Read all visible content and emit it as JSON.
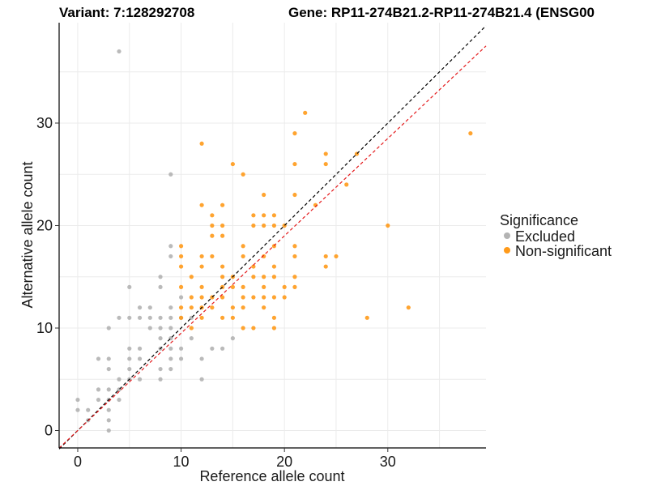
{
  "chart_data": {
    "type": "scatter",
    "title_left": "Variant: 7:128292708",
    "title_right": "Gene: RP11-274B21.2-RP11-274B21.4 (ENSG00",
    "xlabel": "Reference allele count",
    "ylabel": "Alternative allele count",
    "xlim": [
      -1.8,
      39.5
    ],
    "ylim": [
      -1.7,
      39.8
    ],
    "xticks": [
      0,
      10,
      20,
      30
    ],
    "yticks": [
      0,
      10,
      20,
      30
    ],
    "grid": true,
    "legend": {
      "title": "Significance",
      "position": "right",
      "entries": [
        {
          "label": "Excluded",
          "color": "#b3b3b3"
        },
        {
          "label": "Non-significant",
          "color": "#ff9a1a"
        }
      ]
    },
    "reference_lines": [
      {
        "name": "identity",
        "slope": 1.0,
        "intercept": 0,
        "color": "#000000",
        "style": "dashed"
      },
      {
        "name": "fit",
        "slope": 0.95,
        "intercept": 0,
        "color": "#e41a1c",
        "style": "dashed"
      }
    ],
    "series": [
      {
        "name": "Excluded",
        "color": "#b3b3b3",
        "points": [
          [
            4,
            37
          ],
          [
            9,
            25
          ],
          [
            0,
            3
          ],
          [
            0,
            2
          ],
          [
            1,
            2
          ],
          [
            1,
            1
          ],
          [
            2,
            7
          ],
          [
            3,
            7
          ],
          [
            2,
            4
          ],
          [
            2,
            3
          ],
          [
            3,
            4
          ],
          [
            3,
            3
          ],
          [
            3,
            2
          ],
          [
            3,
            6
          ],
          [
            3,
            1
          ],
          [
            3,
            0
          ],
          [
            3,
            10
          ],
          [
            4,
            11
          ],
          [
            4,
            5
          ],
          [
            4,
            4
          ],
          [
            4,
            3
          ],
          [
            5,
            14
          ],
          [
            5,
            11
          ],
          [
            5,
            8
          ],
          [
            5,
            7
          ],
          [
            5,
            6
          ],
          [
            5,
            5
          ],
          [
            6,
            12
          ],
          [
            6,
            11
          ],
          [
            6,
            8
          ],
          [
            6,
            7
          ],
          [
            6,
            5
          ],
          [
            7,
            12
          ],
          [
            7,
            11
          ],
          [
            7,
            10
          ],
          [
            8,
            15
          ],
          [
            8,
            14
          ],
          [
            8,
            11
          ],
          [
            8,
            10
          ],
          [
            8,
            9
          ],
          [
            8,
            8
          ],
          [
            8,
            6
          ],
          [
            8,
            5
          ],
          [
            9,
            18
          ],
          [
            9,
            17
          ],
          [
            9,
            12
          ],
          [
            9,
            11
          ],
          [
            9,
            10
          ],
          [
            9,
            9
          ],
          [
            9,
            8
          ],
          [
            9,
            7
          ],
          [
            9,
            6
          ],
          [
            10,
            13
          ],
          [
            10,
            11
          ],
          [
            10,
            8
          ],
          [
            10,
            7
          ],
          [
            11,
            11
          ],
          [
            11,
            9
          ],
          [
            12,
            7
          ],
          [
            12,
            5
          ],
          [
            13,
            8
          ],
          [
            14,
            8
          ],
          [
            15,
            9
          ]
        ]
      },
      {
        "name": "Non-significant",
        "color": "#ff9a1a",
        "points": [
          [
            12,
            28
          ],
          [
            22,
            31
          ],
          [
            38,
            29
          ],
          [
            15,
            26
          ],
          [
            16,
            25
          ],
          [
            21,
            29
          ],
          [
            21,
            26
          ],
          [
            24,
            27
          ],
          [
            24,
            26
          ],
          [
            27,
            27
          ],
          [
            26,
            24
          ],
          [
            12,
            22
          ],
          [
            14,
            22
          ],
          [
            18,
            23
          ],
          [
            21,
            23
          ],
          [
            23,
            22
          ],
          [
            13,
            21
          ],
          [
            13,
            20
          ],
          [
            14,
            20
          ],
          [
            13,
            19
          ],
          [
            14,
            19
          ],
          [
            17,
            21
          ],
          [
            18,
            21
          ],
          [
            19,
            21
          ],
          [
            17,
            20
          ],
          [
            18,
            20
          ],
          [
            19,
            20
          ],
          [
            20,
            20
          ],
          [
            30,
            20
          ],
          [
            10,
            18
          ],
          [
            16,
            18
          ],
          [
            19,
            18
          ],
          [
            21,
            18
          ],
          [
            10,
            17
          ],
          [
            12,
            17
          ],
          [
            13,
            17
          ],
          [
            16,
            17
          ],
          [
            18,
            17
          ],
          [
            21,
            17
          ],
          [
            24,
            17
          ],
          [
            25,
            17
          ],
          [
            10,
            16
          ],
          [
            12,
            16
          ],
          [
            14,
            16
          ],
          [
            17,
            16
          ],
          [
            19,
            16
          ],
          [
            24,
            16
          ],
          [
            11,
            15
          ],
          [
            14,
            15
          ],
          [
            15,
            15
          ],
          [
            17,
            15
          ],
          [
            18,
            15
          ],
          [
            19,
            15
          ],
          [
            21,
            15
          ],
          [
            10,
            14
          ],
          [
            12,
            14
          ],
          [
            14,
            14
          ],
          [
            15,
            14
          ],
          [
            16,
            14
          ],
          [
            18,
            14
          ],
          [
            20,
            14
          ],
          [
            21,
            14
          ],
          [
            11,
            13
          ],
          [
            12,
            13
          ],
          [
            13,
            13
          ],
          [
            14,
            13
          ],
          [
            16,
            13
          ],
          [
            17,
            13
          ],
          [
            18,
            13
          ],
          [
            19,
            13
          ],
          [
            20,
            13
          ],
          [
            10,
            12
          ],
          [
            11,
            12
          ],
          [
            12,
            12
          ],
          [
            13,
            12
          ],
          [
            15,
            12
          ],
          [
            16,
            12
          ],
          [
            18,
            12
          ],
          [
            32,
            12
          ],
          [
            10,
            11
          ],
          [
            12,
            11
          ],
          [
            14,
            11
          ],
          [
            15,
            11
          ],
          [
            19,
            11
          ],
          [
            28,
            11
          ],
          [
            11,
            10
          ],
          [
            16,
            10
          ],
          [
            17,
            10
          ],
          [
            19,
            10
          ]
        ]
      }
    ]
  }
}
